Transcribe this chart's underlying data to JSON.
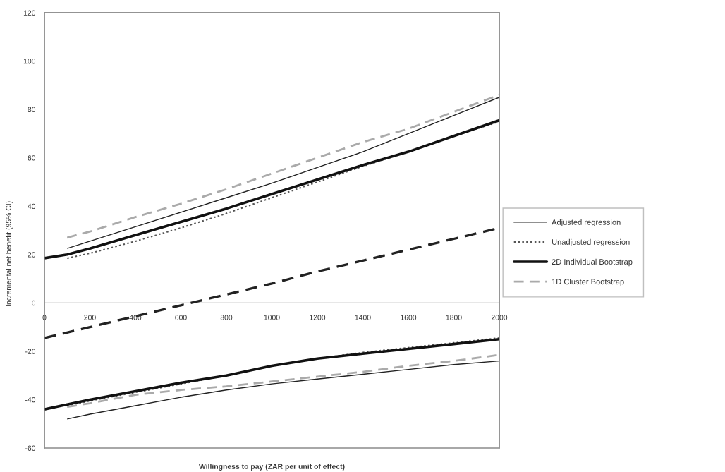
{
  "chart_data": {
    "type": "line",
    "xlabel": "Willingness to pay (ZAR per unit of effect)",
    "ylabel": "Incremental net benefit (95% CI)",
    "xlim": [
      0,
      2000
    ],
    "ylim": [
      -60,
      120
    ],
    "xticks": [
      0,
      200,
      400,
      600,
      800,
      1000,
      1200,
      1400,
      1600,
      1800,
      2000
    ],
    "yticks": [
      -60,
      -40,
      -20,
      0,
      20,
      40,
      60,
      80,
      100,
      120
    ],
    "legend": "right",
    "series": [
      {
        "name": "Adjusted regression",
        "color": "#222222",
        "line_style": "solid",
        "x": [
          100,
          200,
          400,
          600,
          800,
          1000,
          1200,
          1400,
          1600,
          1800,
          2000
        ],
        "values": [
          22.5,
          25.5,
          31.5,
          37.5,
          43.5,
          49.5,
          56,
          62.5,
          70,
          77.5,
          85
        ]
      },
      {
        "color": "#222222",
        "line_style": "solid",
        "x": [
          100,
          200,
          400,
          600,
          800,
          1000,
          1200,
          1400,
          1600,
          1800,
          2000
        ],
        "values": [
          -48,
          -46,
          -42.5,
          -39,
          -36,
          -33.5,
          -31.5,
          -29.5,
          -27.5,
          -25.5,
          -24
        ]
      },
      {
        "name": "Unadjusted regression",
        "color": "#555555",
        "line_style": "dotted",
        "x": [
          100,
          200,
          400,
          600,
          800,
          1000,
          1200,
          1400,
          1600,
          1800,
          2000
        ],
        "values": [
          18.5,
          20.5,
          25.5,
          31,
          37,
          43.5,
          50,
          56.5,
          62.5,
          69,
          75
        ]
      },
      {
        "color": "#555555",
        "line_style": "dotted",
        "x": [
          100,
          200,
          400,
          600,
          800,
          1000,
          1200,
          1400,
          1600,
          1800,
          2000
        ],
        "values": [
          -42.5,
          -40.5,
          -37,
          -33.5,
          -30,
          -26,
          -23,
          -20.5,
          -18.5,
          -16.5,
          -14.5
        ]
      },
      {
        "name": "2D Individual Bootstrap",
        "color": "#111111",
        "line_style": "solid",
        "x": [
          0,
          100,
          200,
          400,
          600,
          800,
          1000,
          1200,
          1400,
          1600,
          1800,
          2000
        ],
        "values": [
          18.5,
          20,
          22.5,
          28,
          33.5,
          39,
          45,
          51,
          57,
          62.5,
          69,
          75.5
        ]
      },
      {
        "color": "#111111",
        "line_style": "solid",
        "x": [
          0,
          100,
          200,
          400,
          600,
          800,
          1000,
          1200,
          1400,
          1600,
          1800,
          2000
        ],
        "values": [
          -44,
          -42,
          -40,
          -36.5,
          -33,
          -30,
          -26,
          -23,
          -21,
          -19,
          -17,
          -15
        ]
      },
      {
        "name": "1D Cluster Bootstrap",
        "color": "#aaaaaa",
        "line_style": "dashed",
        "x": [
          100,
          200,
          400,
          600,
          800,
          1000,
          1200,
          1400,
          1600,
          1800,
          2000
        ],
        "values": [
          27,
          29.5,
          35.5,
          41,
          47,
          53.5,
          60,
          66.5,
          72,
          79,
          86
        ]
      },
      {
        "color": "#aaaaaa",
        "line_style": "dashed",
        "x": [
          100,
          200,
          400,
          600,
          800,
          1000,
          1200,
          1400,
          1600,
          1800,
          2000
        ],
        "values": [
          -43,
          -41.5,
          -38,
          -36,
          -34.5,
          -32.5,
          -30.5,
          -28.5,
          -26,
          -24,
          -21.5
        ]
      },
      {
        "color": "#222222",
        "line_style": "dashed",
        "x": [
          0,
          200,
          400,
          600,
          800,
          1000,
          1200,
          1400,
          1600,
          1800,
          2000
        ],
        "values": [
          -14.5,
          -10,
          -5.5,
          -1,
          3.5,
          8,
          13,
          17.5,
          22,
          26.5,
          31
        ]
      }
    ]
  }
}
